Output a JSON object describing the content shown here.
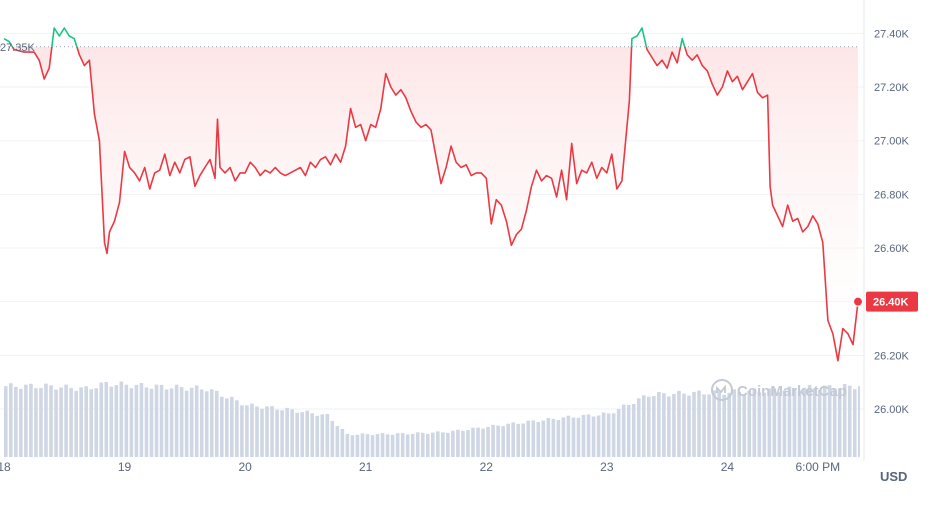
{
  "chart_data": {
    "type": "area",
    "currency": "USD",
    "watermark": "CoinMarketCap",
    "baseline": {
      "label": "27.35K",
      "value": 27350
    },
    "current": {
      "label": "26.40K",
      "value": 26400
    },
    "ylim": [
      25850,
      27580
    ],
    "y_ticks": [
      {
        "value": 27400,
        "label": "27.40K"
      },
      {
        "value": 27200,
        "label": "27.20K"
      },
      {
        "value": 27000,
        "label": "27.00K"
      },
      {
        "value": 26800,
        "label": "26.80K"
      },
      {
        "value": 26600,
        "label": "26.60K"
      },
      {
        "value": 26400,
        "label": "26.40K"
      },
      {
        "value": 26200,
        "label": "26.20K"
      },
      {
        "value": 26000,
        "label": "26.00K"
      }
    ],
    "x_ticks": [
      {
        "t": 0,
        "label": "18"
      },
      {
        "t": 24,
        "label": "19"
      },
      {
        "t": 48,
        "label": "20"
      },
      {
        "t": 72,
        "label": "21"
      },
      {
        "t": 96,
        "label": "22"
      },
      {
        "t": 120,
        "label": "23"
      },
      {
        "t": 144,
        "label": "24"
      },
      {
        "t": 162,
        "label": "6:00 PM"
      }
    ],
    "xlim": [
      0,
      170
    ],
    "series": [
      {
        "values": [
          [
            0,
            27380
          ],
          [
            1,
            27370
          ],
          [
            2,
            27340
          ],
          [
            4,
            27330
          ],
          [
            6,
            27330
          ],
          [
            7,
            27300
          ],
          [
            8,
            27230
          ],
          [
            9,
            27270
          ],
          [
            10,
            27420
          ],
          [
            11,
            27390
          ],
          [
            12,
            27420
          ],
          [
            13,
            27390
          ],
          [
            14,
            27380
          ],
          [
            15,
            27320
          ],
          [
            16,
            27280
          ],
          [
            17,
            27300
          ],
          [
            18,
            27100
          ],
          [
            19,
            27000
          ],
          [
            20,
            26620
          ],
          [
            20.5,
            26580
          ],
          [
            21,
            26660
          ],
          [
            22,
            26700
          ],
          [
            23,
            26770
          ],
          [
            24,
            26960
          ],
          [
            25,
            26900
          ],
          [
            26,
            26880
          ],
          [
            27,
            26850
          ],
          [
            28,
            26900
          ],
          [
            29,
            26820
          ],
          [
            30,
            26880
          ],
          [
            31,
            26890
          ],
          [
            32,
            26950
          ],
          [
            33,
            26870
          ],
          [
            34,
            26920
          ],
          [
            35,
            26880
          ],
          [
            36,
            26930
          ],
          [
            37,
            26940
          ],
          [
            38,
            26830
          ],
          [
            39,
            26870
          ],
          [
            40,
            26900
          ],
          [
            41,
            26930
          ],
          [
            42,
            26860
          ],
          [
            42.5,
            27080
          ],
          [
            43,
            26900
          ],
          [
            44,
            26880
          ],
          [
            45,
            26900
          ],
          [
            46,
            26850
          ],
          [
            47,
            26880
          ],
          [
            48,
            26880
          ],
          [
            49,
            26920
          ],
          [
            50,
            26900
          ],
          [
            51,
            26870
          ],
          [
            52,
            26890
          ],
          [
            53,
            26880
          ],
          [
            54,
            26900
          ],
          [
            55,
            26880
          ],
          [
            56,
            26870
          ],
          [
            57,
            26880
          ],
          [
            58,
            26890
          ],
          [
            59,
            26900
          ],
          [
            60,
            26870
          ],
          [
            61,
            26920
          ],
          [
            62,
            26900
          ],
          [
            63,
            26930
          ],
          [
            64,
            26940
          ],
          [
            65,
            26910
          ],
          [
            66,
            26950
          ],
          [
            67,
            26920
          ],
          [
            68,
            26980
          ],
          [
            69,
            27120
          ],
          [
            70,
            27050
          ],
          [
            71,
            27060
          ],
          [
            72,
            27000
          ],
          [
            73,
            27060
          ],
          [
            74,
            27050
          ],
          [
            75,
            27120
          ],
          [
            76,
            27250
          ],
          [
            77,
            27200
          ],
          [
            78,
            27170
          ],
          [
            79,
            27190
          ],
          [
            80,
            27160
          ],
          [
            81,
            27110
          ],
          [
            82,
            27070
          ],
          [
            83,
            27050
          ],
          [
            84,
            27060
          ],
          [
            85,
            27040
          ],
          [
            86,
            26940
          ],
          [
            87,
            26840
          ],
          [
            88,
            26900
          ],
          [
            89,
            26980
          ],
          [
            90,
            26920
          ],
          [
            91,
            26900
          ],
          [
            92,
            26910
          ],
          [
            93,
            26870
          ],
          [
            94,
            26880
          ],
          [
            95,
            26880
          ],
          [
            96,
            26860
          ],
          [
            97,
            26690
          ],
          [
            98,
            26780
          ],
          [
            99,
            26760
          ],
          [
            100,
            26700
          ],
          [
            101,
            26610
          ],
          [
            102,
            26650
          ],
          [
            103,
            26670
          ],
          [
            104,
            26740
          ],
          [
            105,
            26830
          ],
          [
            106,
            26890
          ],
          [
            107,
            26850
          ],
          [
            108,
            26870
          ],
          [
            109,
            26860
          ],
          [
            110,
            26790
          ],
          [
            111,
            26890
          ],
          [
            112,
            26780
          ],
          [
            113,
            26990
          ],
          [
            114,
            26840
          ],
          [
            115,
            26890
          ],
          [
            116,
            26880
          ],
          [
            117,
            26920
          ],
          [
            118,
            26860
          ],
          [
            119,
            26900
          ],
          [
            120,
            26880
          ],
          [
            121,
            26950
          ],
          [
            122,
            26820
          ],
          [
            123,
            26850
          ],
          [
            124,
            27050
          ],
          [
            124.5,
            27150
          ],
          [
            125,
            27380
          ],
          [
            126,
            27390
          ],
          [
            127,
            27420
          ],
          [
            128,
            27340
          ],
          [
            129,
            27310
          ],
          [
            130,
            27280
          ],
          [
            131,
            27300
          ],
          [
            132,
            27270
          ],
          [
            133,
            27330
          ],
          [
            134,
            27290
          ],
          [
            135,
            27380
          ],
          [
            136,
            27320
          ],
          [
            137,
            27300
          ],
          [
            138,
            27320
          ],
          [
            139,
            27280
          ],
          [
            140,
            27260
          ],
          [
            141,
            27210
          ],
          [
            142,
            27170
          ],
          [
            143,
            27200
          ],
          [
            144,
            27260
          ],
          [
            145,
            27220
          ],
          [
            146,
            27240
          ],
          [
            147,
            27190
          ],
          [
            148,
            27220
          ],
          [
            149,
            27250
          ],
          [
            150,
            27180
          ],
          [
            151,
            27160
          ],
          [
            152,
            27170
          ],
          [
            152.5,
            26830
          ],
          [
            153,
            26760
          ],
          [
            154,
            26720
          ],
          [
            155,
            26680
          ],
          [
            156,
            26760
          ],
          [
            157,
            26700
          ],
          [
            158,
            26710
          ],
          [
            159,
            26660
          ],
          [
            160,
            26680
          ],
          [
            161,
            26720
          ],
          [
            162,
            26690
          ],
          [
            163,
            26620
          ],
          [
            164,
            26330
          ],
          [
            165,
            26280
          ],
          [
            166,
            26180
          ],
          [
            167,
            26300
          ],
          [
            168,
            26280
          ],
          [
            169,
            26240
          ],
          [
            170,
            26400
          ]
        ]
      }
    ],
    "volume": [
      [
        0,
        0.82
      ],
      [
        8,
        0.82
      ],
      [
        16,
        0.79
      ],
      [
        20,
        0.85
      ],
      [
        28,
        0.82
      ],
      [
        40,
        0.79
      ],
      [
        48,
        0.6
      ],
      [
        56,
        0.55
      ],
      [
        64,
        0.48
      ],
      [
        68,
        0.26
      ],
      [
        80,
        0.27
      ],
      [
        88,
        0.29
      ],
      [
        100,
        0.38
      ],
      [
        112,
        0.46
      ],
      [
        120,
        0.5
      ],
      [
        128,
        0.72
      ],
      [
        136,
        0.74
      ],
      [
        144,
        0.75
      ],
      [
        152,
        0.77
      ],
      [
        160,
        0.8
      ],
      [
        170,
        0.82
      ]
    ],
    "colors": {
      "up": "#16c784",
      "down": "#ea3943",
      "area_top": "#fde5e6",
      "volume": "#cfd6e4",
      "grid": "#eff2f5",
      "axis_text": "#58667e",
      "label_bg": "#ea3943"
    }
  }
}
